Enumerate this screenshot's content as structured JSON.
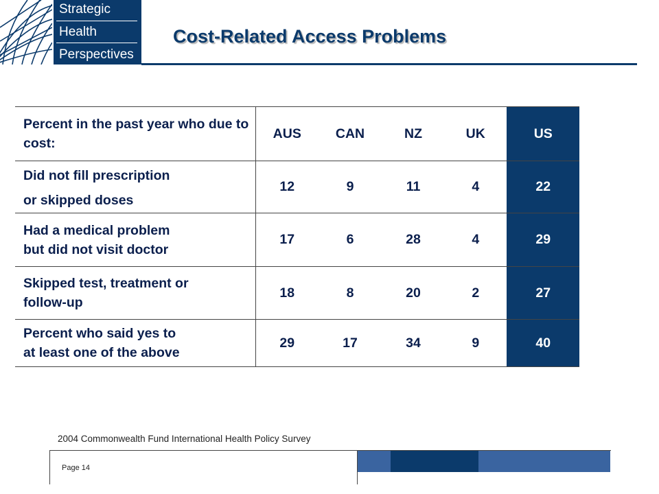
{
  "logo": {
    "lines": [
      "Strategic",
      "Health",
      "Perspectives"
    ]
  },
  "title": "Cost-Related Access Problems",
  "table": {
    "header_label": "Percent in the past year who due to cost:",
    "columns": [
      "AUS",
      "CAN",
      "NZ",
      "UK",
      "US"
    ],
    "rows": [
      {
        "label_lines": [
          "Did not fill prescription",
          "or skipped doses"
        ],
        "values": [
          "12",
          "9",
          "11",
          "4",
          "22"
        ]
      },
      {
        "label_lines": [
          "Had a medical problem",
          "but did not visit doctor"
        ],
        "values": [
          "17",
          "6",
          "28",
          "4",
          "29"
        ]
      },
      {
        "label_lines": [
          "Skipped test, treatment or",
          "follow-up"
        ],
        "values": [
          "18",
          "8",
          "20",
          "2",
          "27"
        ]
      },
      {
        "label_lines": [
          "Percent who said yes to",
          "at least one of the above"
        ],
        "values": [
          "29",
          "17",
          "34",
          "9",
          "40"
        ]
      }
    ]
  },
  "source": "2004 Commonwealth Fund International Health Policy Survey",
  "page_label": "Page 14",
  "colors": {
    "navy": "#0b3a6b",
    "mid_blue": "#3a64a0",
    "text_dark": "#0b1f4d"
  }
}
